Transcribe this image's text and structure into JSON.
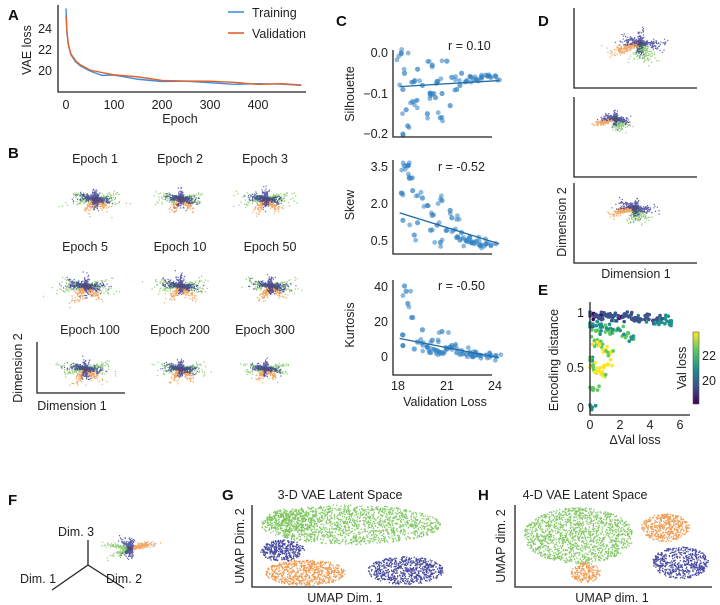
{
  "colors": {
    "training": "#3d8fe0",
    "validation": "#e2622a",
    "green": "#6cc04a",
    "orange": "#ee8a32",
    "navy": "#282c8e",
    "scatter": "#2f80c2"
  },
  "panels": {
    "A": "A",
    "B": "B",
    "C": "C",
    "D": "D",
    "E": "E",
    "F": "F",
    "G": "G",
    "H": "H"
  },
  "chart_data": [
    {
      "id": "A",
      "type": "line",
      "xlabel": "Epoch",
      "ylabel": "VAE loss",
      "xticks": [
        "0",
        "100",
        "200",
        "300",
        "400"
      ],
      "yticks": [
        "20",
        "22",
        "24"
      ],
      "xlim": [
        0,
        495
      ],
      "ylim": [
        18,
        26.2
      ],
      "legend": [
        "Training",
        "Validation"
      ],
      "legend_position": "top-right",
      "x": [
        0,
        2,
        5,
        10,
        20,
        30,
        50,
        75,
        100,
        150,
        200,
        250,
        300,
        350,
        400,
        450,
        490
      ],
      "series": [
        {
          "name": "Training",
          "values": [
            26.0,
            23.6,
            22.4,
            21.5,
            20.8,
            20.4,
            19.9,
            19.6,
            19.4,
            19.15,
            18.95,
            18.85,
            18.75,
            18.65,
            18.6,
            18.55,
            18.5
          ]
        },
        {
          "name": "Validation",
          "values": [
            25.3,
            23.7,
            22.5,
            21.6,
            20.9,
            20.5,
            20.0,
            19.7,
            19.5,
            19.25,
            19.05,
            18.95,
            18.85,
            18.75,
            18.7,
            18.62,
            18.55
          ]
        }
      ]
    },
    {
      "id": "B",
      "type": "scatter",
      "titles": [
        "Epoch 1",
        "Epoch 2",
        "Epoch 3",
        "Epoch 5",
        "Epoch 10",
        "Epoch 50",
        "Epoch 100",
        "Epoch 200",
        "Epoch 300"
      ],
      "xlabel": "Dimension 1",
      "ylabel": "Dimension 2"
    },
    {
      "id": "C1",
      "type": "scatter",
      "ylabel": "Silhouette",
      "yticks": [
        "0.0",
        "−0.1",
        "−0.2"
      ],
      "annotation": "r = 0.10",
      "x": [
        18.2,
        18.4,
        18.3,
        18.6,
        18.9,
        19.2,
        19.5,
        19.8,
        20.1,
        20.4,
        20.7,
        21.0,
        21.3,
        21.6,
        21.9,
        22.2,
        22.5,
        22.8,
        23.1,
        23.4,
        23.7,
        24.0,
        18.3,
        18.5,
        19.0,
        20.0,
        20.6,
        21.2,
        21.8,
        20.3
      ],
      "y": [
        0.0,
        -0.05,
        -0.2,
        -0.18,
        -0.12,
        -0.04,
        -0.08,
        -0.15,
        -0.03,
        -0.07,
        -0.1,
        -0.02,
        -0.06,
        -0.09,
        -0.05,
        -0.07,
        -0.06,
        -0.065,
        -0.06,
        -0.055,
        -0.06,
        -0.058,
        -0.09,
        -0.14,
        -0.07,
        -0.1,
        -0.16,
        -0.13,
        -0.08,
        -0.11
      ],
      "fit": [
        [
          18.1,
          -0.083
        ],
        [
          24.2,
          -0.068
        ]
      ]
    },
    {
      "id": "C2",
      "type": "scatter",
      "ylabel": "Skew",
      "yticks": [
        "3.5",
        "2.0",
        "0.5"
      ],
      "annotation": "r = -0.52",
      "x": [
        18.4,
        18.6,
        18.7,
        18.2,
        18.9,
        19.2,
        19.5,
        19.8,
        20.1,
        20.4,
        20.7,
        21.0,
        21.3,
        21.6,
        21.9,
        22.2,
        22.5,
        22.8,
        23.1,
        23.4,
        23.7,
        24.0,
        18.3,
        19.0,
        20.0,
        20.6,
        21.2,
        21.8,
        22.4,
        23.0
      ],
      "y": [
        3.5,
        3.5,
        3.0,
        2.4,
        2.5,
        1.2,
        2.2,
        1.9,
        1.5,
        1.1,
        2.1,
        0.9,
        1.4,
        0.6,
        0.8,
        0.5,
        0.4,
        0.45,
        0.3,
        0.35,
        0.3,
        0.35,
        1.3,
        0.7,
        0.9,
        0.4,
        1.7,
        0.5,
        0.6,
        0.3
      ],
      "fit": [
        [
          18.1,
          1.6
        ],
        [
          24.2,
          0.35
        ]
      ]
    },
    {
      "id": "C3",
      "type": "scatter",
      "ylabel": "Kurtosis",
      "xlabel": "Validation Loss",
      "yticks": [
        "40",
        "20",
        "0"
      ],
      "xticks": [
        "18",
        "21",
        "24"
      ],
      "annotation": "r = -0.50",
      "x": [
        18.4,
        18.5,
        18.6,
        18.3,
        18.9,
        19.2,
        19.5,
        19.8,
        20.1,
        20.4,
        20.7,
        21.0,
        21.3,
        21.6,
        21.9,
        22.2,
        22.5,
        22.8,
        23.1,
        23.4,
        23.7,
        24.0,
        18.3,
        19.0,
        20.0,
        20.6,
        21.2,
        21.8,
        22.4,
        23.0
      ],
      "y": [
        40,
        37,
        30,
        12,
        22,
        8,
        15,
        5,
        9,
        3,
        14,
        4,
        6,
        2,
        3,
        1,
        1,
        0.5,
        0.3,
        0.5,
        0.2,
        0.3,
        6,
        4,
        2,
        2,
        5,
        1,
        2,
        0.5
      ],
      "fit": [
        [
          18.1,
          10
        ],
        [
          24.2,
          -1
        ]
      ]
    },
    {
      "id": "D",
      "type": "scatter",
      "xlabel": "Dimension 1",
      "ylabel": "Dimension 2"
    },
    {
      "id": "E",
      "type": "scatter",
      "xlabel": "ΔVal loss",
      "ylabel": "Encoding distance",
      "xticks": [
        "0",
        "2",
        "4",
        "6"
      ],
      "yticks": [
        "1",
        "0.5",
        "0"
      ],
      "colorbar_label": "Val loss",
      "colorbar_ticks": [
        "22",
        "20"
      ],
      "x": [
        0.1,
        0.3,
        0.5,
        0.8,
        1.0,
        1.3,
        1.6,
        2.0,
        2.3,
        2.6,
        3.0,
        3.4,
        3.8,
        4.2,
        4.6,
        5.0,
        5.3,
        0.2,
        0.4,
        0.7,
        1.1,
        1.5,
        1.9,
        2.4,
        2.9,
        0.3,
        0.6,
        1.0,
        1.4,
        0.1,
        0.2,
        0.5,
        0.8,
        1.2,
        0.05,
        0.2
      ],
      "y": [
        0.97,
        0.95,
        0.96,
        0.94,
        0.97,
        0.95,
        0.96,
        0.94,
        0.97,
        0.95,
        0.93,
        0.92,
        0.94,
        0.91,
        0.9,
        0.93,
        0.88,
        0.85,
        0.8,
        0.86,
        0.83,
        0.78,
        0.82,
        0.75,
        0.72,
        0.7,
        0.65,
        0.6,
        0.58,
        0.5,
        0.42,
        0.38,
        0.35,
        0.45,
        0.0,
        0.2
      ],
      "c": [
        19.5,
        19.2,
        19.8,
        20.1,
        19.4,
        19.6,
        20.0,
        19.3,
        19.7,
        19.5,
        19.9,
        20.2,
        20.0,
        19.8,
        20.5,
        20.4,
        21.0,
        20.8,
        21.5,
        20.9,
        21.2,
        22.0,
        21.4,
        21.8,
        21.6,
        22.5,
        22.2,
        23.0,
        22.8,
        21.5,
        22.5,
        23.2,
        22.7,
        23.1,
        20.5,
        22.0
      ]
    },
    {
      "id": "F",
      "type": "scatter",
      "axis_labels": [
        "Dim. 3",
        "Dim. 1",
        "Dim. 2"
      ]
    },
    {
      "id": "G",
      "type": "scatter",
      "title": "3-D VAE Latent Space",
      "xlabel": "UMAP Dim. 1",
      "ylabel": "UMAP Dim. 2"
    },
    {
      "id": "H",
      "type": "scatter",
      "title": "4-D VAE Latent Space",
      "xlabel": "UMAP dim. 1",
      "ylabel": "UMAP dim. 2"
    }
  ]
}
